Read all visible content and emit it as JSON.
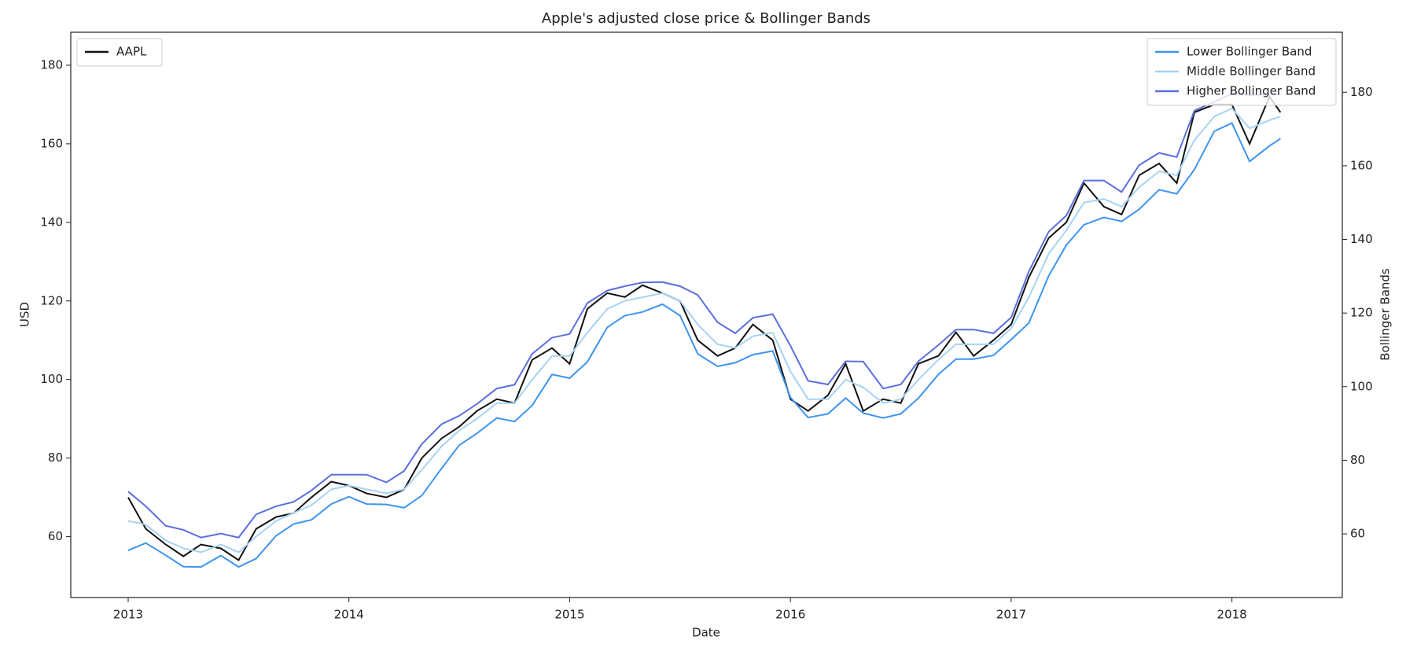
{
  "chart_data": {
    "type": "line",
    "title": "Apple's adjusted close price & Bollinger Bands",
    "xlabel": "Date",
    "ylabel": "USD",
    "y2label": "Bollinger Bands",
    "x": [
      2013,
      2013.08,
      2013.17,
      2013.25,
      2013.33,
      2013.42,
      2013.5,
      2013.58,
      2013.67,
      2013.75,
      2013.83,
      2013.92,
      2014,
      2014.08,
      2014.17,
      2014.25,
      2014.33,
      2014.42,
      2014.5,
      2014.58,
      2014.67,
      2014.75,
      2014.83,
      2014.92,
      2015,
      2015.08,
      2015.17,
      2015.25,
      2015.33,
      2015.42,
      2015.5,
      2015.58,
      2015.67,
      2015.75,
      2015.83,
      2015.92,
      2016,
      2016.08,
      2016.17,
      2016.25,
      2016.33,
      2016.42,
      2016.5,
      2016.58,
      2016.67,
      2016.75,
      2016.83,
      2016.92,
      2017,
      2017.08,
      2017.17,
      2017.25,
      2017.33,
      2017.42,
      2017.5,
      2017.58,
      2017.67,
      2017.75,
      2017.83,
      2017.92,
      2018,
      2018.08,
      2018.17,
      2018.22
    ],
    "series": [
      {
        "name": "AAPL",
        "color": "#111111",
        "axis": "y",
        "legend": "upper left",
        "values": [
          70,
          62,
          58,
          55,
          58,
          57,
          54,
          62,
          65,
          66,
          70,
          74,
          73,
          71,
          70,
          72,
          80,
          85,
          88,
          92,
          95,
          94,
          105,
          108,
          104,
          118,
          122,
          121,
          124,
          122,
          120,
          110,
          106,
          108,
          114,
          110,
          95,
          92,
          96,
          104,
          92,
          95,
          94,
          104,
          106,
          112,
          106,
          110,
          114,
          126,
          136,
          140,
          150,
          144,
          142,
          152,
          155,
          150,
          168,
          170,
          170,
          160,
          172,
          168
        ]
      },
      {
        "name": "Lower Bollinger Band",
        "color": "#3d94f0",
        "axis": "y2",
        "legend": "upper right",
        "values": [
          55.5,
          57.5,
          54.2,
          51.1,
          51.0,
          54.1,
          51.0,
          53.3,
          59.5,
          62.7,
          63.8,
          68.1,
          70.1,
          68.1,
          68.0,
          67.1,
          70.4,
          77.8,
          84.1,
          87.3,
          91.5,
          90.5,
          94.9,
          103.3,
          102.3,
          106.7,
          116.1,
          119.3,
          120.3,
          122.4,
          119.3,
          108.9,
          105.5,
          106.5,
          108.7,
          109.7,
          97.1,
          91.6,
          92.6,
          96.9,
          92.8,
          91.5,
          92.6,
          96.9,
          103.3,
          107.5,
          107.5,
          108.5,
          112.8,
          117.3,
          130.1,
          138.5,
          144.0,
          146.0,
          144.9,
          148.2,
          153.5,
          152.4,
          159.0,
          169.4,
          171.6,
          161.2,
          165.4,
          167.4
        ]
      },
      {
        "name": "Middle Bollinger Band",
        "color": "#a6d3f4",
        "axis": "y2",
        "legend": "upper right",
        "values": [
          63.5,
          62.5,
          58.2,
          56.1,
          55.0,
          57.1,
          55.0,
          59.3,
          63.5,
          65.7,
          67.8,
          72.1,
          73.1,
          72.1,
          71.0,
          72.1,
          77.4,
          83.8,
          88.1,
          91.3,
          95.5,
          95.5,
          101.9,
          108.3,
          108.3,
          114.7,
          121.1,
          123.3,
          124.3,
          125.4,
          123.3,
          116.9,
          111.5,
          110.5,
          113.7,
          114.7,
          104.1,
          96.6,
          96.6,
          101.9,
          99.8,
          95.5,
          96.6,
          101.9,
          107.3,
          111.5,
          111.5,
          111.5,
          115.8,
          124.3,
          136.1,
          142.5,
          150.0,
          151.0,
          148.9,
          154.2,
          158.5,
          157.4,
          167.0,
          173.4,
          175.6,
          170.2,
          172.4,
          173.4
        ]
      },
      {
        "name": "Higher Bollinger Band",
        "color": "#5a6fdf",
        "axis": "y2",
        "legend": "upper right",
        "values": [
          71.5,
          67.5,
          62.2,
          61.1,
          59.0,
          60.1,
          59.0,
          65.3,
          67.5,
          68.7,
          71.8,
          76.1,
          76.1,
          76.1,
          74.0,
          77.1,
          84.4,
          89.8,
          92.1,
          95.3,
          99.5,
          100.5,
          108.9,
          113.3,
          114.3,
          122.7,
          126.1,
          127.3,
          128.3,
          128.4,
          127.3,
          124.9,
          117.5,
          114.5,
          118.7,
          119.7,
          111.1,
          101.6,
          100.6,
          106.9,
          106.8,
          99.5,
          100.6,
          106.9,
          111.3,
          115.5,
          115.5,
          114.5,
          118.8,
          131.3,
          142.1,
          146.5,
          156.0,
          156.0,
          152.9,
          160.2,
          163.5,
          162.4,
          175.0,
          177.4,
          179.6,
          179.2,
          179.4,
          179.4
        ]
      }
    ],
    "xlim": [
      2012.74,
      2018.5
    ],
    "xticks": [
      2013,
      2014,
      2015,
      2016,
      2017,
      2018
    ],
    "ylim": [
      44.5,
      188.4
    ],
    "yticks": [
      60,
      80,
      100,
      120,
      140,
      160,
      180
    ],
    "y2lim": [
      42.7,
      196.3
    ],
    "y2ticks": [
      60,
      80,
      100,
      120,
      140,
      160,
      180
    ]
  }
}
